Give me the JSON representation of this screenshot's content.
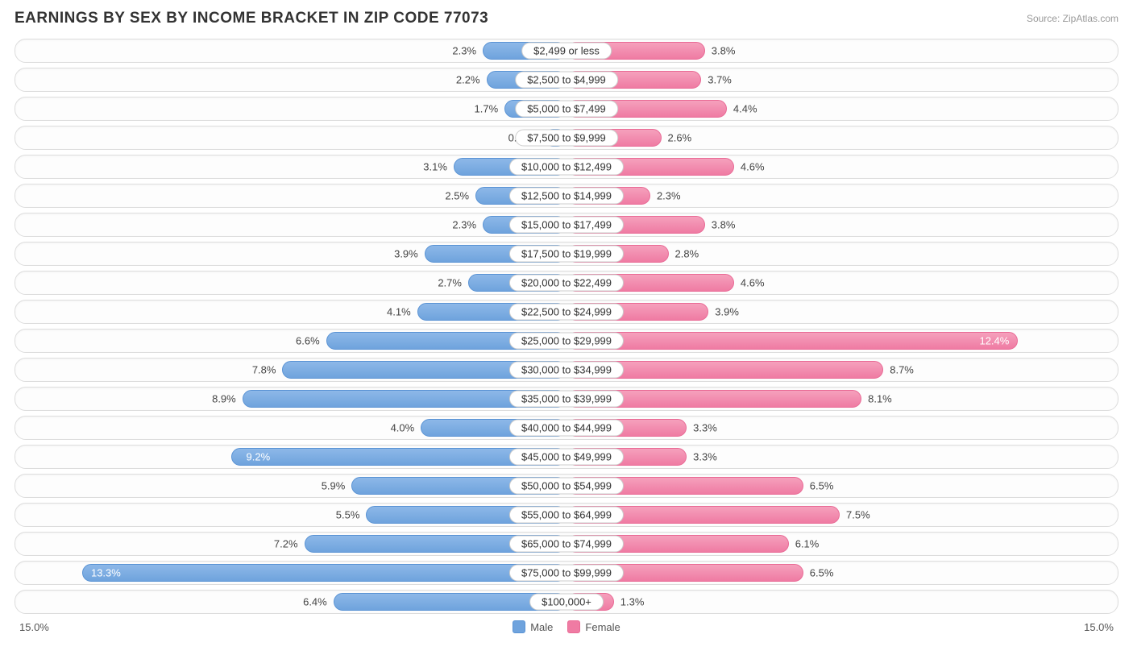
{
  "title": "EARNINGS BY SEX BY INCOME BRACKET IN ZIP CODE 77073",
  "source": "Source: ZipAtlas.com",
  "chart": {
    "type": "diverging-bar",
    "axis_max": 15.0,
    "axis_label_left": "15.0%",
    "axis_label_right": "15.0%",
    "male_color": "#6fa3dd",
    "male_border": "#5a93d4",
    "female_color": "#ef7ba3",
    "female_border": "#e96a95",
    "row_border": "#dddddd",
    "background": "#ffffff",
    "label_fontsize": 13,
    "title_fontsize": 19,
    "legend": {
      "male": "Male",
      "female": "Female"
    },
    "rows": [
      {
        "label": "$2,499 or less",
        "male": 2.3,
        "male_txt": "2.3%",
        "female": 3.8,
        "female_txt": "3.8%"
      },
      {
        "label": "$2,500 to $4,999",
        "male": 2.2,
        "male_txt": "2.2%",
        "female": 3.7,
        "female_txt": "3.7%"
      },
      {
        "label": "$5,000 to $7,499",
        "male": 1.7,
        "male_txt": "1.7%",
        "female": 4.4,
        "female_txt": "4.4%"
      },
      {
        "label": "$7,500 to $9,999",
        "male": 0.61,
        "male_txt": "0.61%",
        "female": 2.6,
        "female_txt": "2.6%"
      },
      {
        "label": "$10,000 to $12,499",
        "male": 3.1,
        "male_txt": "3.1%",
        "female": 4.6,
        "female_txt": "4.6%"
      },
      {
        "label": "$12,500 to $14,999",
        "male": 2.5,
        "male_txt": "2.5%",
        "female": 2.3,
        "female_txt": "2.3%"
      },
      {
        "label": "$15,000 to $17,499",
        "male": 2.3,
        "male_txt": "2.3%",
        "female": 3.8,
        "female_txt": "3.8%"
      },
      {
        "label": "$17,500 to $19,999",
        "male": 3.9,
        "male_txt": "3.9%",
        "female": 2.8,
        "female_txt": "2.8%"
      },
      {
        "label": "$20,000 to $22,499",
        "male": 2.7,
        "male_txt": "2.7%",
        "female": 4.6,
        "female_txt": "4.6%"
      },
      {
        "label": "$22,500 to $24,999",
        "male": 4.1,
        "male_txt": "4.1%",
        "female": 3.9,
        "female_txt": "3.9%"
      },
      {
        "label": "$25,000 to $29,999",
        "male": 6.6,
        "male_txt": "6.6%",
        "female": 12.4,
        "female_txt": "12.4%",
        "female_inside": true
      },
      {
        "label": "$30,000 to $34,999",
        "male": 7.8,
        "male_txt": "7.8%",
        "female": 8.7,
        "female_txt": "8.7%"
      },
      {
        "label": "$35,000 to $39,999",
        "male": 8.9,
        "male_txt": "8.9%",
        "female": 8.1,
        "female_txt": "8.1%"
      },
      {
        "label": "$40,000 to $44,999",
        "male": 4.0,
        "male_txt": "4.0%",
        "female": 3.3,
        "female_txt": "3.3%"
      },
      {
        "label": "$45,000 to $49,999",
        "male": 9.2,
        "male_txt": "9.2%",
        "female": 3.3,
        "female_txt": "3.3%",
        "male_inside": true
      },
      {
        "label": "$50,000 to $54,999",
        "male": 5.9,
        "male_txt": "5.9%",
        "female": 6.5,
        "female_txt": "6.5%"
      },
      {
        "label": "$55,000 to $64,999",
        "male": 5.5,
        "male_txt": "5.5%",
        "female": 7.5,
        "female_txt": "7.5%"
      },
      {
        "label": "$65,000 to $74,999",
        "male": 7.2,
        "male_txt": "7.2%",
        "female": 6.1,
        "female_txt": "6.1%"
      },
      {
        "label": "$75,000 to $99,999",
        "male": 13.3,
        "male_txt": "13.3%",
        "female": 6.5,
        "female_txt": "6.5%",
        "male_inside": true
      },
      {
        "label": "$100,000+",
        "male": 6.4,
        "male_txt": "6.4%",
        "female": 1.3,
        "female_txt": "1.3%"
      }
    ]
  }
}
